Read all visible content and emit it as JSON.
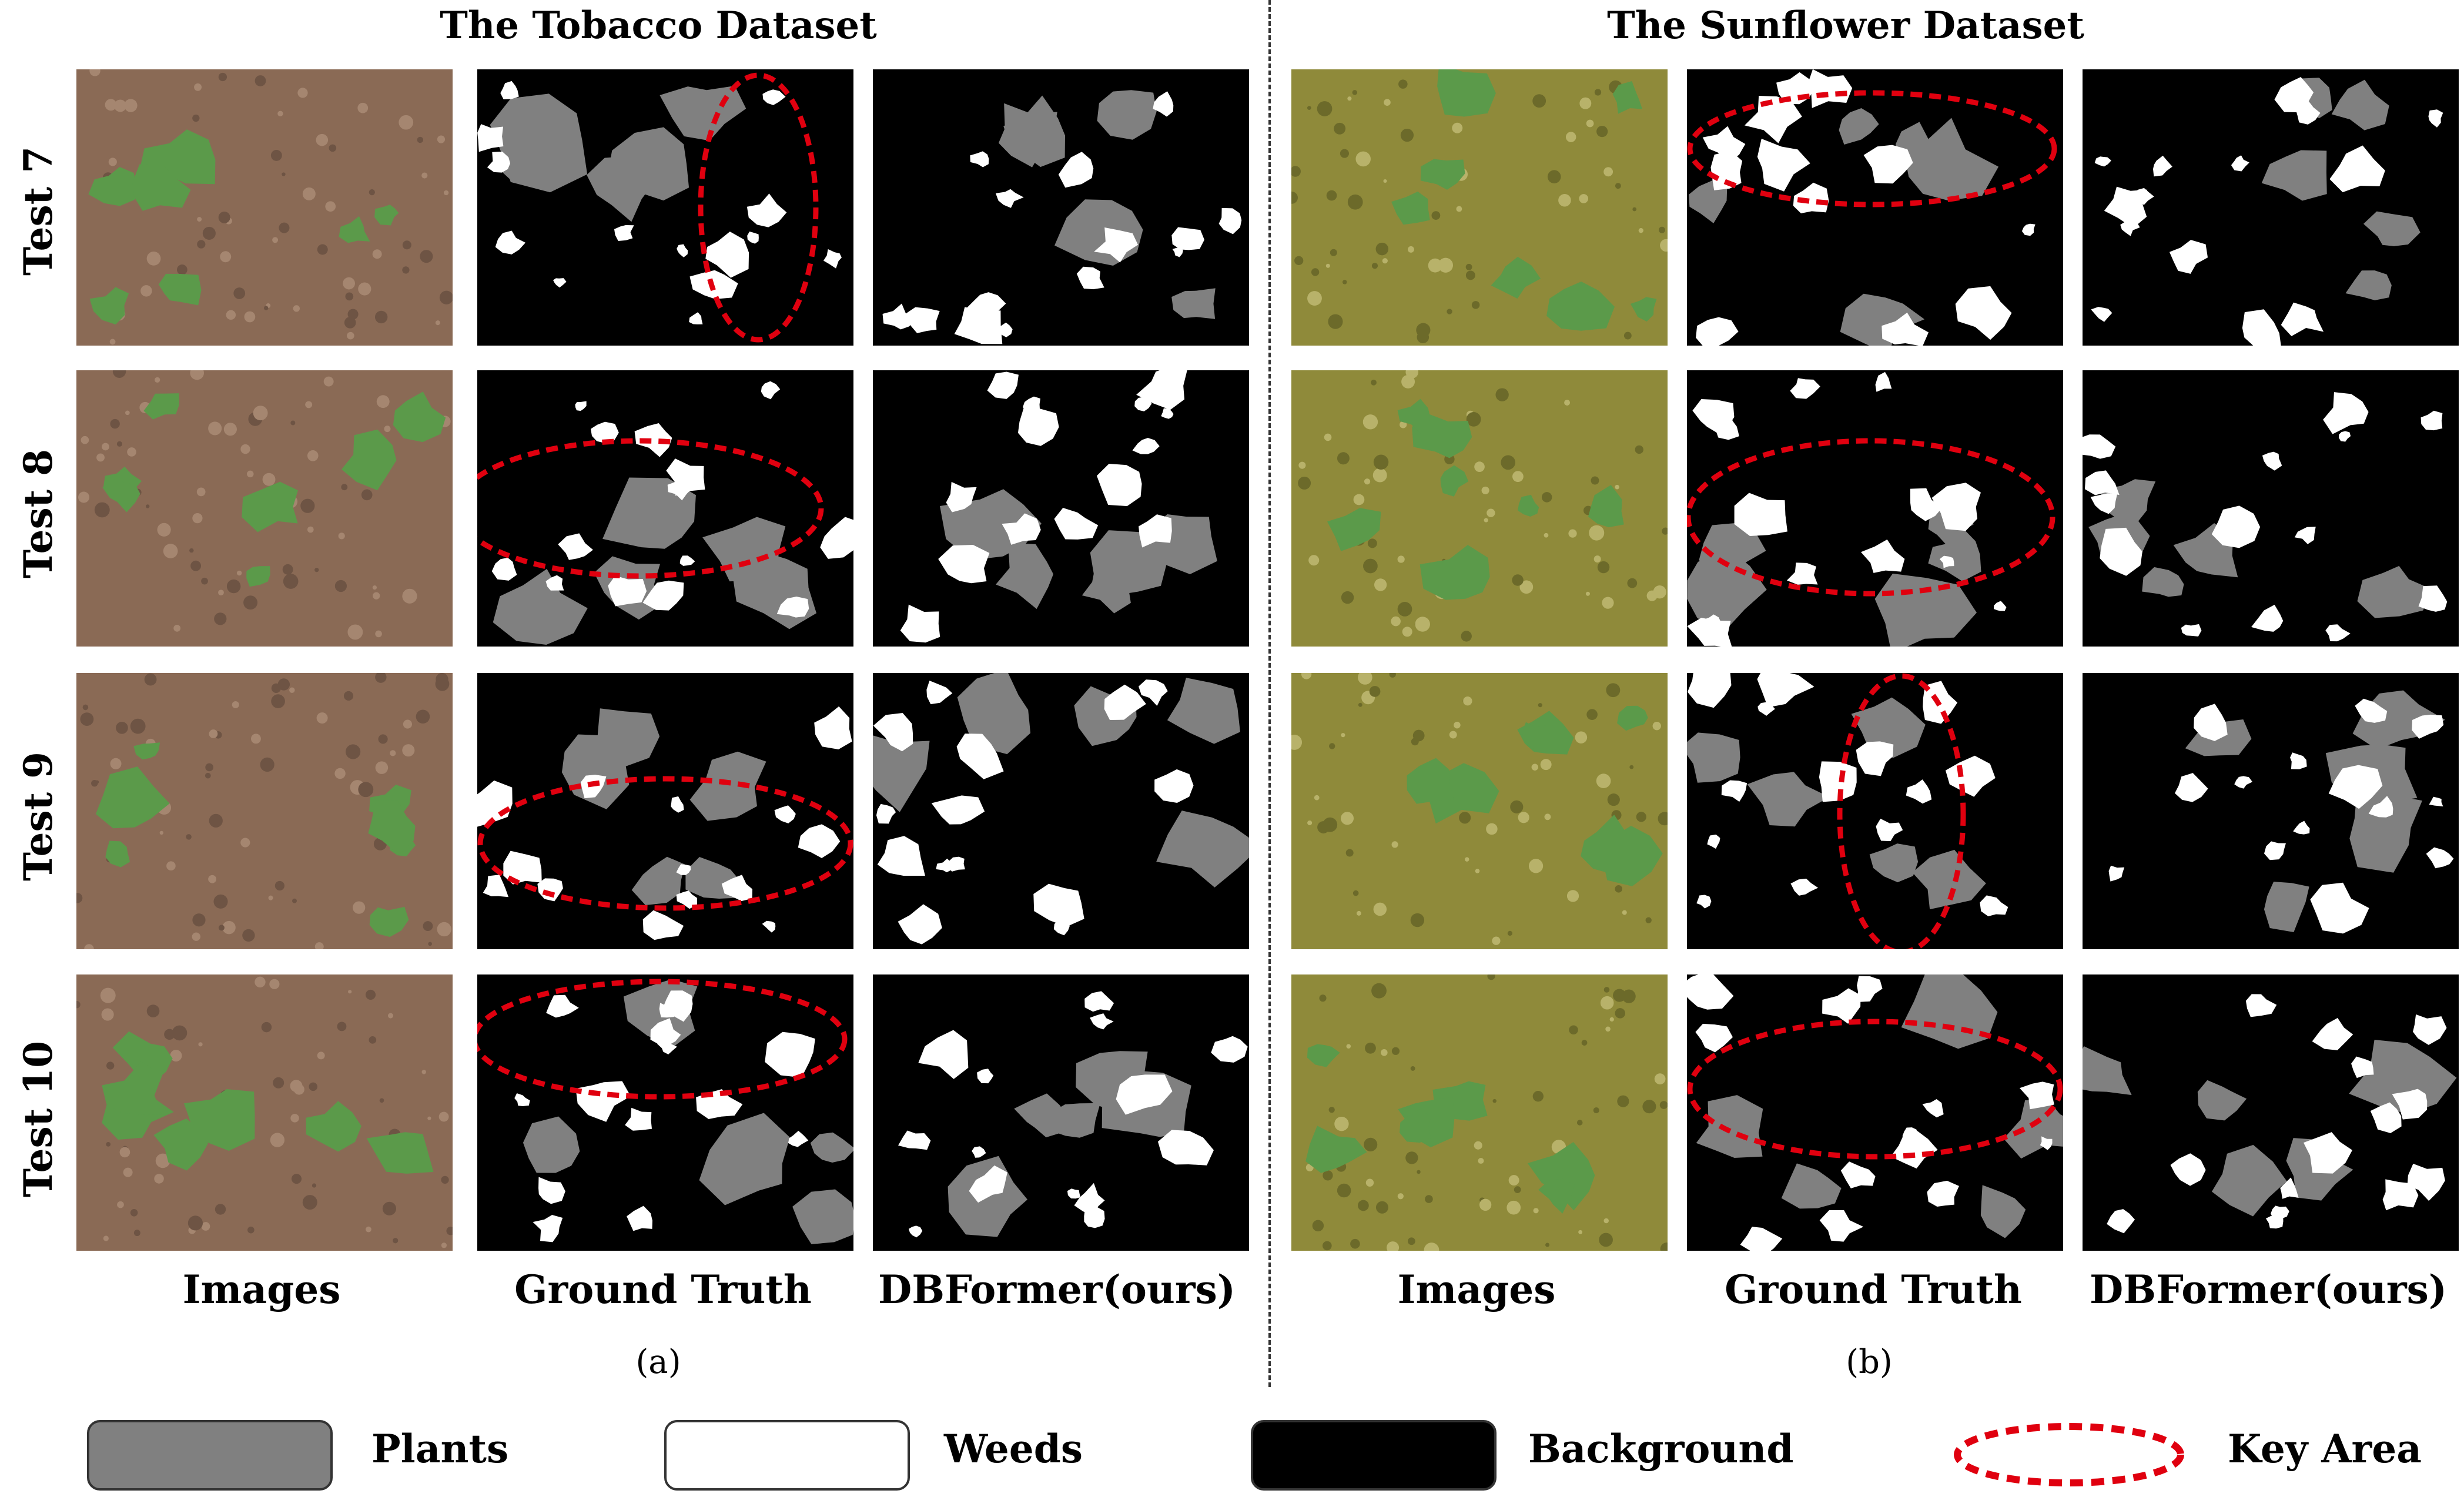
{
  "titles": {
    "left": "The Tobacco Dataset",
    "right": "The Sunflower Dataset"
  },
  "rows": [
    "Test 7",
    "Test 8",
    "Test 9",
    "Test 10"
  ],
  "columns": {
    "left": [
      "Images",
      "Ground Truth",
      "DBFormer(ours)"
    ],
    "right": [
      "Images",
      "Ground Truth",
      "DBFormer(ours)"
    ]
  },
  "subcaptions": {
    "left": "(a)",
    "right": "(b)"
  },
  "legend": {
    "plants": "Plants",
    "weeds": "Weeds",
    "background": "Background",
    "key_area": "Key Area"
  },
  "colors": {
    "plants": "#808080",
    "weeds": "#ffffff",
    "background": "#000000",
    "key_area": "#e0000f",
    "tobacco_soil": "#8a6a55",
    "sunflower_soil": "#8f8a3a",
    "leaf": "#5b9a4a"
  }
}
